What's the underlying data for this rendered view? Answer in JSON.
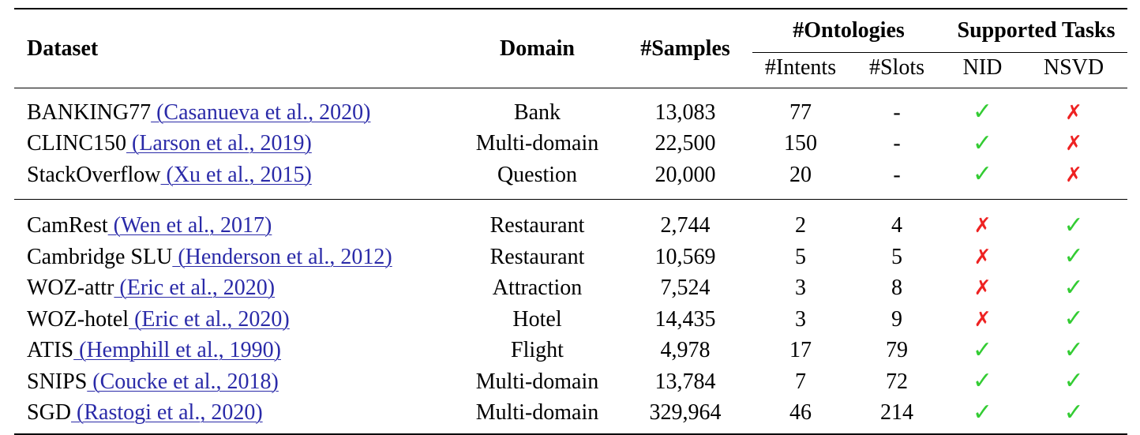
{
  "header": {
    "dataset": "Dataset",
    "domain": "Domain",
    "samples": "#Samples",
    "ontologies": "#Ontologies",
    "intents": "#Intents",
    "slots": "#Slots",
    "supported_tasks": "Supported Tasks",
    "nid": "NID",
    "nsvd": "NSVD"
  },
  "icons": {
    "yes": "✓",
    "no": "✗",
    "yes_color": "#33cc33",
    "no_color": "#ee2222",
    "link_color": "#2a2aa8"
  },
  "groups": [
    {
      "rows": [
        {
          "name": "BANKING77",
          "cite": " (Casanueva et al., 2020)",
          "domain": "Bank",
          "samples": "13,083",
          "intents": "77",
          "slots": "-",
          "nid": true,
          "nsvd": false
        },
        {
          "name": "CLINC150",
          "cite": " (Larson et al., 2019)",
          "domain": "Multi-domain",
          "samples": "22,500",
          "intents": "150",
          "slots": "-",
          "nid": true,
          "nsvd": false
        },
        {
          "name": "StackOverflow",
          "cite": " (Xu et al., 2015)",
          "domain": "Question",
          "samples": "20,000",
          "intents": "20",
          "slots": "-",
          "nid": true,
          "nsvd": false
        }
      ]
    },
    {
      "rows": [
        {
          "name": "CamRest",
          "cite": " (Wen et al., 2017)",
          "domain": "Restaurant",
          "samples": "2,744",
          "intents": "2",
          "slots": "4",
          "nid": false,
          "nsvd": true
        },
        {
          "name": "Cambridge SLU",
          "cite": " (Henderson et al., 2012)",
          "domain": "Restaurant",
          "samples": "10,569",
          "intents": "5",
          "slots": "5",
          "nid": false,
          "nsvd": true
        },
        {
          "name": "WOZ-attr",
          "cite": " (Eric et al., 2020)",
          "domain": "Attraction",
          "samples": "7,524",
          "intents": "3",
          "slots": "8",
          "nid": false,
          "nsvd": true
        },
        {
          "name": "WOZ-hotel",
          "cite": " (Eric et al., 2020)",
          "domain": "Hotel",
          "samples": "14,435",
          "intents": "3",
          "slots": "9",
          "nid": false,
          "nsvd": true
        },
        {
          "name": "ATIS",
          "cite": " (Hemphill et al., 1990)",
          "domain": "Flight",
          "samples": "4,978",
          "intents": "17",
          "slots": "79",
          "nid": true,
          "nsvd": true
        },
        {
          "name": "SNIPS",
          "cite": " (Coucke et al., 2018)",
          "domain": "Multi-domain",
          "samples": "13,784",
          "intents": "7",
          "slots": "72",
          "nid": true,
          "nsvd": true
        },
        {
          "name": "SGD",
          "cite": " (Rastogi et al., 2020)",
          "domain": "Multi-domain",
          "samples": "329,964",
          "intents": "46",
          "slots": "214",
          "nid": true,
          "nsvd": true
        }
      ]
    }
  ]
}
